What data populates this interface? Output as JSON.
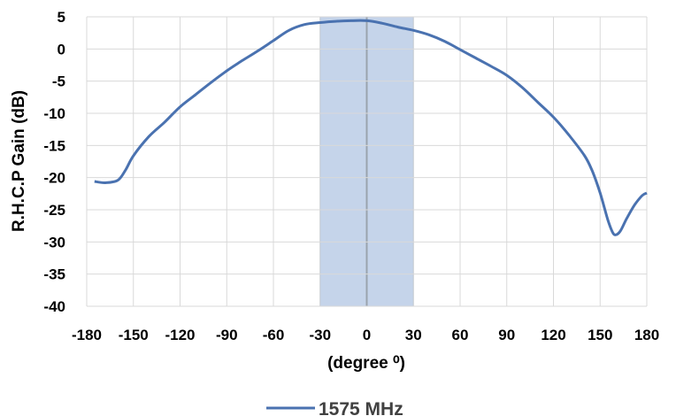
{
  "chart_data": {
    "type": "line",
    "title": "",
    "xlabel": "(degree ⁰)",
    "ylabel": "R.H.C.P Gain (dB)",
    "xlim": [
      -180,
      180
    ],
    "ylim": [
      -40,
      5
    ],
    "x_ticks": [
      -180,
      -150,
      -120,
      -90,
      -60,
      -30,
      0,
      30,
      60,
      90,
      120,
      150,
      180
    ],
    "y_ticks": [
      5,
      0,
      -5,
      -10,
      -15,
      -20,
      -25,
      -30,
      -35,
      -40
    ],
    "grid": true,
    "legend_position": "bottom",
    "highlight_band": {
      "x_range": [
        -30,
        30
      ],
      "color": "#c5d4ea"
    },
    "series": [
      {
        "name": "1575 MHz",
        "color": "#4a72b0",
        "x": [
          -175,
          -168,
          -160,
          -155,
          -150,
          -140,
          -130,
          -120,
          -110,
          -100,
          -90,
          -80,
          -70,
          -60,
          -50,
          -40,
          -30,
          -20,
          -10,
          0,
          10,
          20,
          30,
          40,
          50,
          60,
          70,
          80,
          90,
          100,
          110,
          120,
          130,
          140,
          145,
          150,
          155,
          158,
          160,
          163,
          167,
          172,
          177,
          180
        ],
        "values": [
          -20.6,
          -20.8,
          -20.4,
          -18.8,
          -16.6,
          -13.6,
          -11.4,
          -9.0,
          -7.1,
          -5.2,
          -3.4,
          -1.8,
          -0.3,
          1.3,
          2.9,
          3.8,
          4.1,
          4.3,
          4.4,
          4.4,
          4.0,
          3.4,
          2.9,
          2.2,
          1.2,
          -0.1,
          -1.4,
          -2.7,
          -4.1,
          -6.0,
          -8.3,
          -10.6,
          -13.4,
          -16.6,
          -19.0,
          -22.4,
          -26.6,
          -28.5,
          -28.9,
          -28.3,
          -26.4,
          -24.3,
          -22.8,
          -22.4
        ]
      }
    ]
  }
}
